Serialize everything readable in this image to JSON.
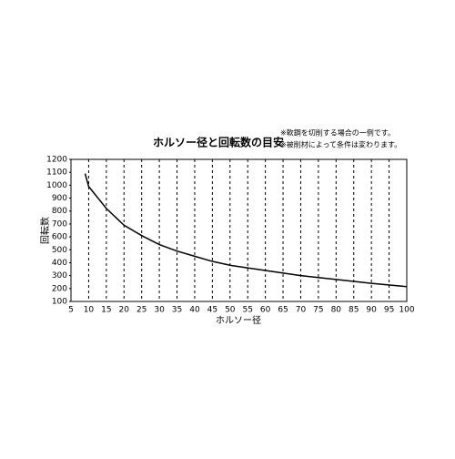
{
  "chart_data": {
    "type": "line",
    "title": "ホルソー径と回転数の目安",
    "notes": [
      "※軟鋼を切削する場合の一例です。",
      "※被削材によって条件は変わります。"
    ],
    "x_label": "ホルソー径",
    "y_label": "回転数",
    "x": [
      9,
      10,
      15,
      20,
      25,
      30,
      35,
      40,
      45,
      50,
      60,
      70,
      80,
      90,
      100
    ],
    "values": [
      1090,
      990,
      820,
      690,
      610,
      540,
      490,
      450,
      410,
      380,
      340,
      300,
      270,
      240,
      215
    ],
    "color": "#000000",
    "xlim": [
      5,
      100
    ],
    "xticks": [
      5,
      10,
      15,
      20,
      25,
      30,
      35,
      40,
      45,
      50,
      55,
      60,
      65,
      70,
      75,
      80,
      85,
      90,
      95,
      100
    ],
    "ylim": [
      100,
      1200
    ],
    "yticks": [
      100,
      200,
      300,
      400,
      500,
      600,
      700,
      800,
      900,
      1000,
      1100,
      1200
    ],
    "grid": "x"
  }
}
